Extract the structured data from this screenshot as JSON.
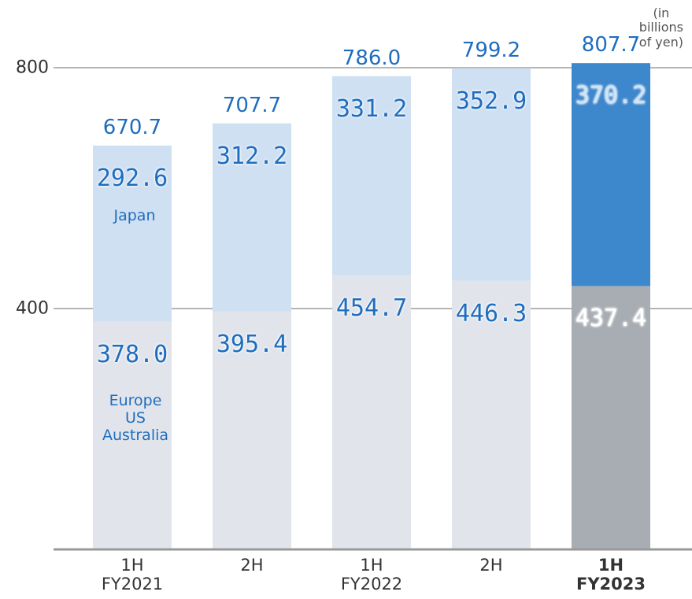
{
  "chart_data": {
    "type": "stacked_bar",
    "subtitle": "(in billions of yen)",
    "categories": [
      [
        "1H",
        "FY2021"
      ],
      [
        "2H"
      ],
      [
        "1H",
        "FY2022"
      ],
      [
        "2H"
      ],
      [
        "1H",
        "FY2023"
      ]
    ],
    "bold_categories": [
      false,
      false,
      false,
      false,
      true
    ],
    "ylim": [
      0,
      800
    ],
    "yticks": [
      400,
      800
    ],
    "grid": true,
    "series": [
      {
        "name": "Europe\nUS\nAustralia",
        "colors": [
          "#e1e5eb",
          "#e1e5eb",
          "#e1e5eb",
          "#e1e5eb",
          "#a8adb3"
        ],
        "label_colors": [
          "#1f6dbf",
          "#1f6dbf",
          "#1f6dbf",
          "#1f6dbf",
          "#ffffff"
        ],
        "values": [
          378.0,
          395.4,
          454.7,
          446.3,
          437.4
        ],
        "value_labels": [
          "378.0",
          "395.4",
          "454.7",
          "446.3",
          "437.4"
        ]
      },
      {
        "name": "Japan",
        "colors": [
          "#cfe0f2",
          "#cfe0f2",
          "#cfe0f2",
          "#cfe0f2",
          "#3d87cd"
        ],
        "label_colors": [
          "#1f6dbf",
          "#1f6dbf",
          "#1f6dbf",
          "#1f6dbf",
          "#cfe3f7"
        ],
        "values": [
          292.6,
          312.2,
          331.2,
          352.9,
          370.2
        ],
        "value_labels": [
          "292.6",
          "312.2",
          "331.2",
          "352.9",
          "370.2"
        ]
      }
    ],
    "totals": [
      670.7,
      707.7,
      786.0,
      799.2,
      807.7
    ],
    "total_labels": [
      "670.7",
      "707.7",
      "786.0",
      "799.2",
      "807.7"
    ]
  }
}
